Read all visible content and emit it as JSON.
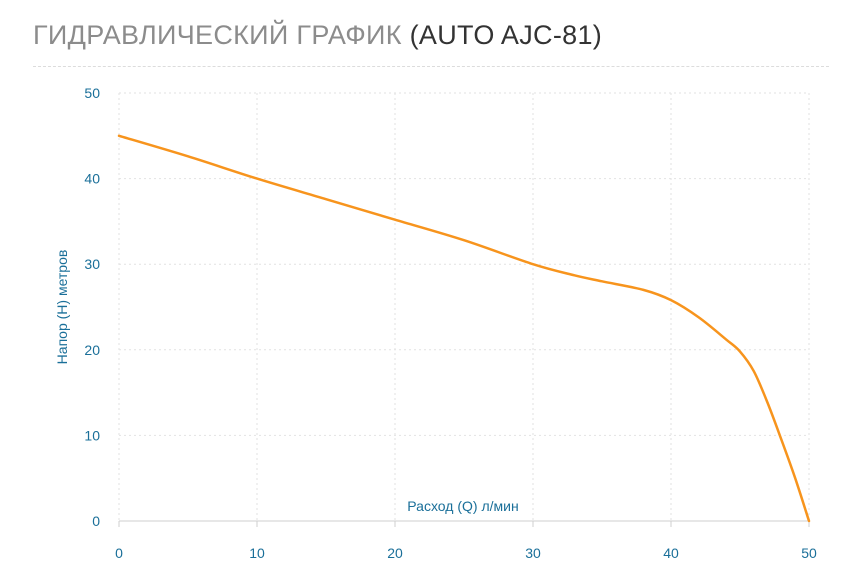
{
  "title": {
    "main": "ГИДРАВЛИЧЕСКИЙ ГРАФИК",
    "model": "(AUTO AJC-81)"
  },
  "colors": {
    "curve": "#f7941d",
    "axis_text": "#1a6f99",
    "title_main": "#8c8c8c",
    "title_model": "#333333",
    "grid": "#e2e2e2"
  },
  "chart_data": {
    "type": "line",
    "title": "",
    "xlabel": "Расход (Q) л/мин",
    "ylabel": "Напор (H) метров",
    "xlim": [
      0,
      50
    ],
    "ylim": [
      0,
      50
    ],
    "x_ticks": [
      0,
      10,
      20,
      30,
      40,
      50
    ],
    "y_ticks": [
      0,
      10,
      20,
      30,
      40,
      50
    ],
    "grid": true,
    "series": [
      {
        "x": [
          0,
          5,
          10,
          15,
          20,
          25,
          30,
          33,
          35,
          38,
          40,
          42,
          44,
          45,
          46,
          47,
          48,
          49,
          50
        ],
        "y": [
          45,
          42.6,
          40,
          37.6,
          35.2,
          32.8,
          30,
          28.7,
          28,
          27,
          25.8,
          23.8,
          21.2,
          19.8,
          17.5,
          13.8,
          9.5,
          5,
          0
        ]
      }
    ]
  }
}
